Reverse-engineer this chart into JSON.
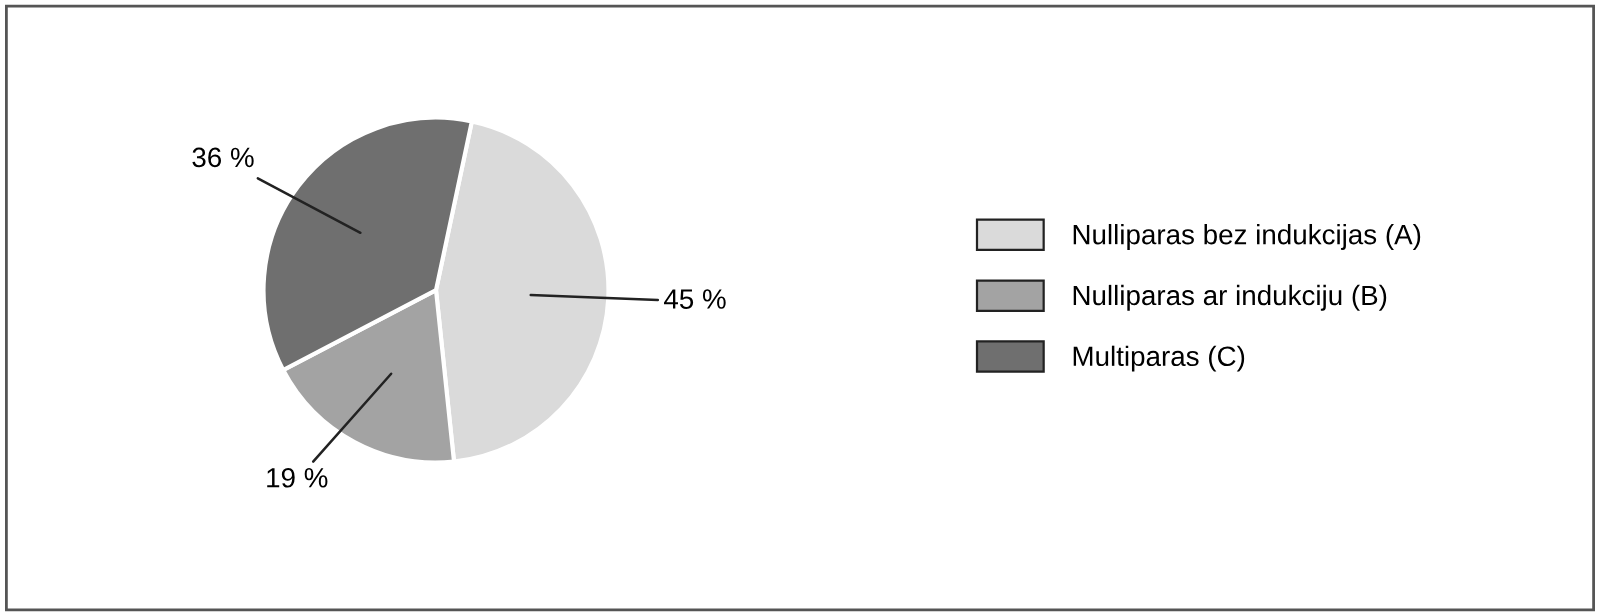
{
  "chart_data": {
    "type": "pie",
    "categories": [
      "Nulliparas bez indukcijas (A)",
      "Nulliparas ar indukciju (B)",
      "Multiparas (C)"
    ],
    "values": [
      45,
      19,
      36
    ],
    "colors": [
      "#dadada",
      "#a3a3a3",
      "#6f6f6f"
    ],
    "value_labels": [
      "45 %",
      "19 %",
      "36 %"
    ],
    "legend": "right"
  }
}
